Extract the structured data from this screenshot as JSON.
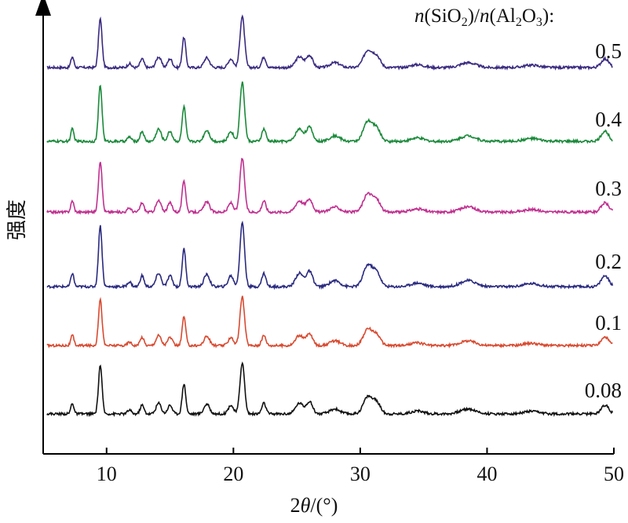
{
  "chart_data": {
    "type": "line",
    "xlabel_parts": {
      "two": "2",
      "theta": "θ",
      "unit": "/(°)"
    },
    "ylabel": "强度",
    "legend_title_parts": {
      "n1": "n",
      "a": "(SiO",
      "s1": "2",
      "b": ")/",
      "n2": "n",
      "c": "(Al",
      "s2": "2",
      "d": "O",
      "s3": "3",
      "e": "):"
    },
    "xlim": [
      5,
      50
    ],
    "x_ticks": [
      10,
      20,
      30,
      40,
      50
    ],
    "grid": false,
    "peaks": [
      {
        "x": 7.3,
        "h": 0.22,
        "w": 0.12
      },
      {
        "x": 9.5,
        "h": 1.0,
        "w": 0.14
      },
      {
        "x": 11.8,
        "h": 0.08,
        "w": 0.15
      },
      {
        "x": 12.8,
        "h": 0.18,
        "w": 0.15
      },
      {
        "x": 14.1,
        "h": 0.22,
        "w": 0.2
      },
      {
        "x": 15.0,
        "h": 0.18,
        "w": 0.18
      },
      {
        "x": 16.1,
        "h": 0.62,
        "w": 0.14
      },
      {
        "x": 17.9,
        "h": 0.2,
        "w": 0.22
      },
      {
        "x": 19.8,
        "h": 0.18,
        "w": 0.2
      },
      {
        "x": 20.7,
        "h": 1.05,
        "w": 0.18
      },
      {
        "x": 22.4,
        "h": 0.22,
        "w": 0.16
      },
      {
        "x": 25.2,
        "h": 0.22,
        "w": 0.3
      },
      {
        "x": 26.0,
        "h": 0.25,
        "w": 0.25
      },
      {
        "x": 28.0,
        "h": 0.1,
        "w": 0.4
      },
      {
        "x": 30.6,
        "h": 0.35,
        "w": 0.35
      },
      {
        "x": 31.3,
        "h": 0.22,
        "w": 0.3
      },
      {
        "x": 34.5,
        "h": 0.06,
        "w": 0.5
      },
      {
        "x": 38.5,
        "h": 0.1,
        "w": 0.6
      },
      {
        "x": 43.5,
        "h": 0.05,
        "w": 0.6
      },
      {
        "x": 49.3,
        "h": 0.18,
        "w": 0.3
      }
    ],
    "series": [
      {
        "name": "0.5",
        "color": "#3a2a80",
        "scale": 1.0
      },
      {
        "name": "0.4",
        "color": "#1a8a3a",
        "scale": 1.15
      },
      {
        "name": "0.3",
        "color": "#c03090",
        "scale": 1.05
      },
      {
        "name": "0.2",
        "color": "#2a2a80",
        "scale": 1.25
      },
      {
        "name": "0.1",
        "color": "#d84a30",
        "scale": 0.95
      },
      {
        "name": "0.08",
        "color": "#111111",
        "scale": 1.0
      }
    ]
  }
}
